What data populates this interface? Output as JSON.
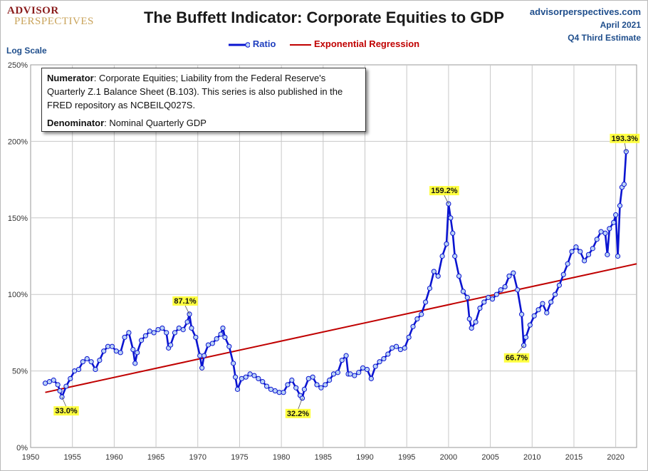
{
  "logo": {
    "line1": "ADVISOR",
    "line2": "PERSPECTIVES"
  },
  "header": {
    "title": "The Buffett Indicator: Corporate Equities to GDP",
    "site": "advisorperspectives.com",
    "date": "April 2021",
    "estimate": "Q4 Third Estimate"
  },
  "y_scale_note": "Log Scale",
  "legend": {
    "ratio": "Ratio",
    "regression": "Exponential Regression"
  },
  "note": {
    "numerator_label": "Numerator",
    "numerator_text": ": Corporate Equities; Liability from the Federal Reserve's Quarterly Z.1 Balance Sheet (B.103). This series is also published in the FRED repository  as NCBEILQ027S.",
    "denominator_label": "Denominator",
    "denominator_text": ": Nominal Quarterly GDP"
  },
  "colors": {
    "ratio_line": "#0a14d0",
    "ratio_marker_fill": "#bcd4f6",
    "regression": "#c00000",
    "callout_bg": "#ffff40",
    "grid": "#c8c8c8"
  },
  "chart_data": {
    "type": "line",
    "title": "The Buffett Indicator: Corporate Equities to GDP",
    "ylabel": "Log Scale",
    "y_ticks": [
      "0%",
      "50%",
      "100%",
      "150%",
      "200%",
      "250%"
    ],
    "x_ticks": [
      "1950",
      "1955",
      "1960",
      "1965",
      "1970",
      "1975",
      "1980",
      "1985",
      "1990",
      "1995",
      "2000",
      "2005",
      "2010",
      "2015",
      "2020"
    ],
    "xlim": [
      1950,
      2022.5
    ],
    "ylim": [
      0,
      250
    ],
    "grid": true,
    "legend_position": "top-center",
    "series": [
      {
        "name": "Ratio",
        "points": [
          [
            1951.75,
            42
          ],
          [
            1952.25,
            43
          ],
          [
            1952.75,
            44
          ],
          [
            1953.25,
            41
          ],
          [
            1953.5,
            37
          ],
          [
            1953.75,
            33
          ],
          [
            1954.25,
            40
          ],
          [
            1954.75,
            45
          ],
          [
            1955.25,
            50
          ],
          [
            1955.75,
            51
          ],
          [
            1956.25,
            56
          ],
          [
            1956.75,
            58
          ],
          [
            1957.25,
            56
          ],
          [
            1957.75,
            51
          ],
          [
            1958.25,
            57
          ],
          [
            1958.75,
            63
          ],
          [
            1959.25,
            66
          ],
          [
            1959.75,
            66
          ],
          [
            1960.25,
            63
          ],
          [
            1960.75,
            62
          ],
          [
            1961.25,
            72
          ],
          [
            1961.75,
            75
          ],
          [
            1962.25,
            64
          ],
          [
            1962.5,
            55
          ],
          [
            1962.75,
            62
          ],
          [
            1963.25,
            70
          ],
          [
            1963.75,
            73
          ],
          [
            1964.25,
            76
          ],
          [
            1964.75,
            75
          ],
          [
            1965.25,
            77
          ],
          [
            1965.75,
            78
          ],
          [
            1966.25,
            75
          ],
          [
            1966.5,
            65
          ],
          [
            1966.75,
            67
          ],
          [
            1967.25,
            75
          ],
          [
            1967.75,
            78
          ],
          [
            1968.25,
            77
          ],
          [
            1968.75,
            82
          ],
          [
            1969.0,
            87.1
          ],
          [
            1969.25,
            78
          ],
          [
            1969.75,
            72
          ],
          [
            1970.25,
            60
          ],
          [
            1970.5,
            52
          ],
          [
            1970.75,
            60
          ],
          [
            1971.25,
            67
          ],
          [
            1971.75,
            68
          ],
          [
            1972.25,
            71
          ],
          [
            1972.75,
            74
          ],
          [
            1973.0,
            78
          ],
          [
            1973.25,
            72
          ],
          [
            1973.75,
            66
          ],
          [
            1974.25,
            55
          ],
          [
            1974.5,
            46
          ],
          [
            1974.75,
            38
          ],
          [
            1975.25,
            45
          ],
          [
            1975.75,
            46
          ],
          [
            1976.25,
            48
          ],
          [
            1976.75,
            47
          ],
          [
            1977.25,
            45
          ],
          [
            1977.75,
            43
          ],
          [
            1978.25,
            40
          ],
          [
            1978.75,
            38
          ],
          [
            1979.25,
            37
          ],
          [
            1979.75,
            36
          ],
          [
            1980.25,
            36
          ],
          [
            1980.75,
            41
          ],
          [
            1981.25,
            44
          ],
          [
            1981.75,
            39
          ],
          [
            1982.25,
            34
          ],
          [
            1982.5,
            32.2
          ],
          [
            1982.75,
            38
          ],
          [
            1983.25,
            45
          ],
          [
            1983.75,
            46
          ],
          [
            1984.25,
            41
          ],
          [
            1984.75,
            39
          ],
          [
            1985.25,
            41
          ],
          [
            1985.75,
            44
          ],
          [
            1986.25,
            48
          ],
          [
            1986.75,
            49
          ],
          [
            1987.25,
            57
          ],
          [
            1987.75,
            60
          ],
          [
            1988.0,
            48
          ],
          [
            1988.25,
            48
          ],
          [
            1988.75,
            47
          ],
          [
            1989.25,
            49
          ],
          [
            1989.75,
            52
          ],
          [
            1990.25,
            51
          ],
          [
            1990.75,
            45
          ],
          [
            1991.25,
            53
          ],
          [
            1991.75,
            56
          ],
          [
            1992.25,
            58
          ],
          [
            1992.75,
            61
          ],
          [
            1993.25,
            65
          ],
          [
            1993.75,
            66
          ],
          [
            1994.25,
            64
          ],
          [
            1994.75,
            65
          ],
          [
            1995.25,
            72
          ],
          [
            1995.75,
            79
          ],
          [
            1996.25,
            84
          ],
          [
            1996.75,
            87
          ],
          [
            1997.25,
            95
          ],
          [
            1997.75,
            104
          ],
          [
            1998.25,
            115
          ],
          [
            1998.75,
            112
          ],
          [
            1999.25,
            125
          ],
          [
            1999.75,
            133
          ],
          [
            2000.0,
            159.2
          ],
          [
            2000.25,
            150
          ],
          [
            2000.5,
            140
          ],
          [
            2000.75,
            125
          ],
          [
            2001.25,
            112
          ],
          [
            2001.75,
            102
          ],
          [
            2002.25,
            98
          ],
          [
            2002.5,
            84
          ],
          [
            2002.75,
            78
          ],
          [
            2003.25,
            82
          ],
          [
            2003.75,
            91
          ],
          [
            2004.25,
            95
          ],
          [
            2004.75,
            98
          ],
          [
            2005.25,
            97
          ],
          [
            2005.75,
            100
          ],
          [
            2006.25,
            103
          ],
          [
            2006.75,
            105
          ],
          [
            2007.25,
            112
          ],
          [
            2007.75,
            114
          ],
          [
            2008.25,
            103
          ],
          [
            2008.75,
            87
          ],
          [
            2009.0,
            66.7
          ],
          [
            2009.25,
            72
          ],
          [
            2009.75,
            80
          ],
          [
            2010.25,
            86
          ],
          [
            2010.75,
            90
          ],
          [
            2011.25,
            94
          ],
          [
            2011.75,
            88
          ],
          [
            2012.25,
            95
          ],
          [
            2012.75,
            100
          ],
          [
            2013.25,
            106
          ],
          [
            2013.75,
            113
          ],
          [
            2014.25,
            120
          ],
          [
            2014.75,
            128
          ],
          [
            2015.25,
            131
          ],
          [
            2015.75,
            128
          ],
          [
            2016.25,
            122
          ],
          [
            2016.75,
            126
          ],
          [
            2017.25,
            130
          ],
          [
            2017.75,
            136
          ],
          [
            2018.25,
            141
          ],
          [
            2018.75,
            140
          ],
          [
            2019.0,
            126
          ],
          [
            2019.25,
            143
          ],
          [
            2019.75,
            147
          ],
          [
            2020.0,
            152
          ],
          [
            2020.25,
            125
          ],
          [
            2020.5,
            158
          ],
          [
            2020.75,
            170
          ],
          [
            2021.0,
            172
          ],
          [
            2021.25,
            193.3
          ]
        ]
      },
      {
        "name": "Exponential Regression",
        "points": [
          [
            1951.75,
            36
          ],
          [
            2022.5,
            120
          ]
        ]
      }
    ],
    "annotations": [
      {
        "text": "33.0%",
        "x": 1953.75,
        "y": 33.0
      },
      {
        "text": "87.1%",
        "x": 1969.0,
        "y": 87.1
      },
      {
        "text": "32.2%",
        "x": 1982.5,
        "y": 32.2
      },
      {
        "text": "159.2%",
        "x": 2000.0,
        "y": 159.2
      },
      {
        "text": "66.7%",
        "x": 2009.0,
        "y": 66.7
      },
      {
        "text": "193.3%",
        "x": 2021.25,
        "y": 193.3
      }
    ]
  }
}
